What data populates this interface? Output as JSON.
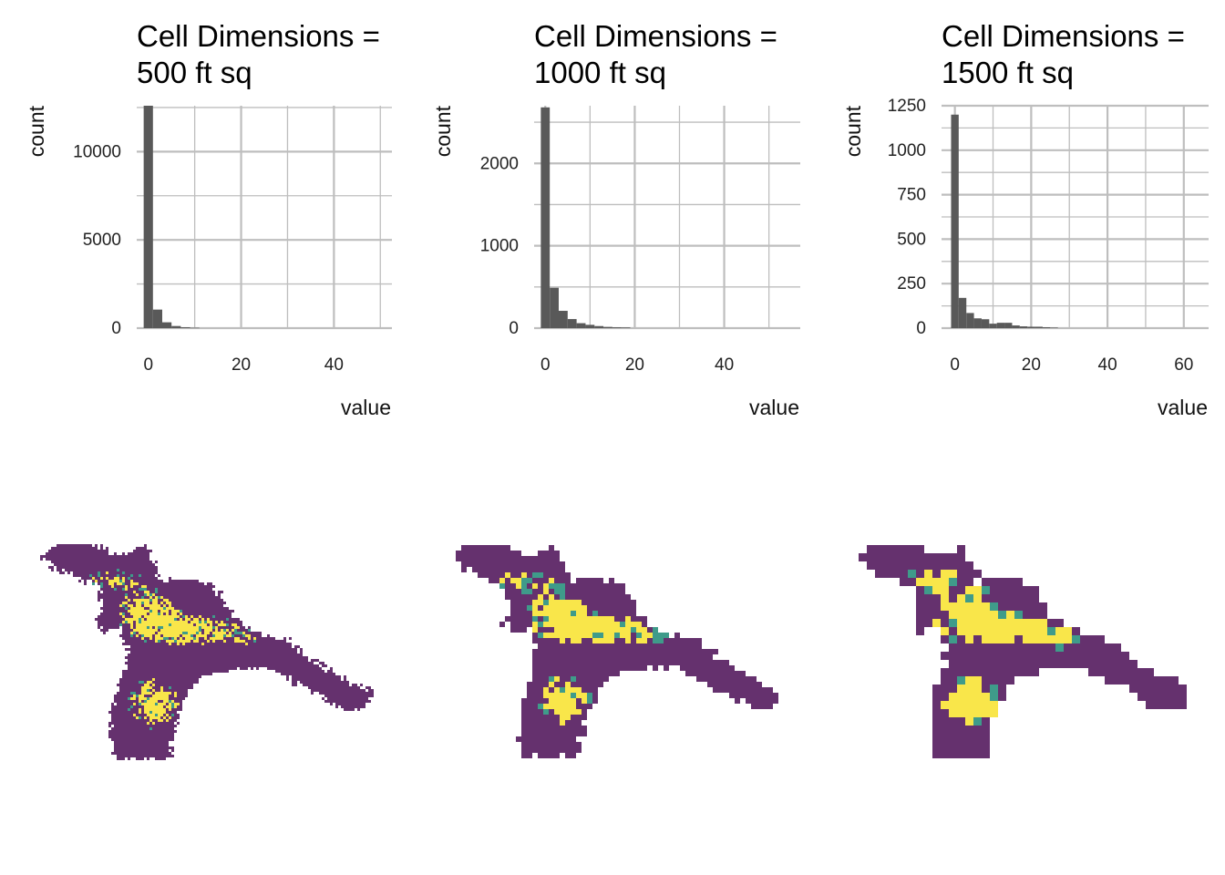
{
  "colors": {
    "bar": "#595959",
    "grid": "#bebebe",
    "map_low": "#65316e",
    "map_mid": "#3f9b8a",
    "map_high": "#f9e64a"
  },
  "chart_data": [
    {
      "type": "bar",
      "title": "Cell Dimensions = \n500 ft sq",
      "title_lines": [
        "Cell Dimensions =",
        "500 ft sq"
      ],
      "xlabel": "value",
      "ylabel": "count",
      "xlim": [
        -2.5,
        52.5
      ],
      "ylim": [
        0,
        12600
      ],
      "xticks": [
        0,
        20,
        40
      ],
      "xtick_labels": [
        "0",
        "20",
        "40"
      ],
      "yticks": [
        0,
        5000,
        10000
      ],
      "ytick_labels": [
        "0",
        "5000",
        "10000"
      ],
      "bin_width": 2,
      "bin_starts": [
        -1,
        1,
        3,
        5,
        7,
        9
      ],
      "values": [
        12600,
        1050,
        330,
        120,
        50,
        20
      ],
      "grid": true,
      "legend": "none"
    },
    {
      "type": "bar",
      "title": "Cell Dimensions = \n1000 ft sq",
      "title_lines": [
        "Cell Dimensions =",
        "1000 ft sq"
      ],
      "xlabel": "value",
      "ylabel": "count",
      "xlim": [
        -2.5,
        57
      ],
      "ylim": [
        0,
        2700
      ],
      "xticks": [
        0,
        20,
        40
      ],
      "xtick_labels": [
        "0",
        "20",
        "40"
      ],
      "yticks": [
        0,
        1000,
        2000
      ],
      "ytick_labels": [
        "0",
        "1000",
        "2000"
      ],
      "bin_width": 2,
      "bin_starts": [
        -1,
        1,
        3,
        5,
        7,
        9,
        11,
        13,
        15,
        17
      ],
      "values": [
        2680,
        490,
        210,
        110,
        60,
        40,
        25,
        15,
        10,
        8
      ],
      "grid": true,
      "legend": "none"
    },
    {
      "type": "bar",
      "title": "Cell Dimensions = \n1500 ft sq",
      "title_lines": [
        "Cell Dimensions =",
        "1500 ft sq"
      ],
      "xlabel": "value",
      "ylabel": "count",
      "xlim": [
        -3.5,
        66.5
      ],
      "ylim": [
        0,
        1250
      ],
      "xticks": [
        0,
        20,
        40,
        60
      ],
      "xtick_labels": [
        "0",
        "20",
        "40",
        "60"
      ],
      "yticks": [
        0,
        250,
        500,
        750,
        1000,
        1250
      ],
      "ytick_labels": [
        "0",
        "250",
        "500",
        "750",
        "1000",
        "1250"
      ],
      "bin_width": 2,
      "bin_starts": [
        -1,
        1,
        3,
        5,
        7,
        9,
        11,
        13,
        15,
        17,
        19,
        21,
        23,
        25
      ],
      "values": [
        1200,
        170,
        85,
        55,
        50,
        25,
        30,
        30,
        15,
        10,
        8,
        8,
        5,
        3
      ],
      "grid": true,
      "legend": "none"
    },
    {
      "type": "heatmap",
      "panel": "500 ft sq",
      "color_scale": [
        "#65316e",
        "#3f9b8a",
        "#f9e64a"
      ]
    },
    {
      "type": "heatmap",
      "panel": "1000 ft sq",
      "color_scale": [
        "#65316e",
        "#3f9b8a",
        "#f9e64a"
      ]
    },
    {
      "type": "heatmap",
      "panel": "1500 ft sq",
      "color_scale": [
        "#65316e",
        "#3f9b8a",
        "#f9e64a"
      ]
    }
  ]
}
